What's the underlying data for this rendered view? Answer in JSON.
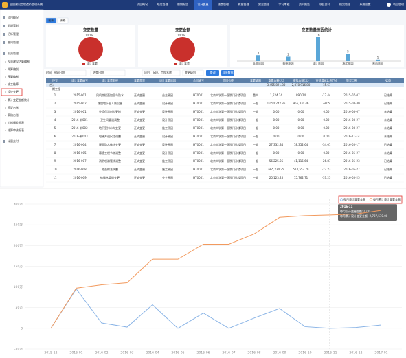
{
  "header": {
    "title": "全国建设工程造价管理系统",
    "nav": [
      "项目概况",
      "规范管理",
      "前期报告",
      "设计变更",
      "进度管理",
      "质量管理",
      "安全管理",
      "学习考核",
      "资料报告",
      "项目资料",
      "档案管理",
      "系统设置"
    ],
    "user": "项目管理"
  },
  "sidebar": [
    "项目概况",
    "前期策划",
    "招标管理",
    "合同管理",
    "投资管理",
    "投资建设估算编制",
    "概算编制",
    "预算编制",
    "竣工结算",
    "设计变更",
    "累计变更金额统计",
    "签证台账",
    "索赔台账",
    "价格调差报表",
    "结算审核报表",
    "计量支付"
  ],
  "tabs": [
    "图表",
    "表格"
  ],
  "filters": {
    "label": "时间:",
    "start": "开始日期",
    "end": "结束日期",
    "keyword": "项目、标段、工程名称",
    "level": "变更级别",
    "search": "查询",
    "export": "导出数据"
  },
  "table": {
    "columns": [
      "序号",
      "设计变更编号",
      "设计变更名称",
      "变更类型",
      "设计变更原因",
      "合同编号",
      "合同名称",
      "变更级别",
      "变更金额(元)",
      "审批金额(元)",
      "审核增减比例(%)",
      "签订日期",
      "状态"
    ],
    "total": {
      "label": "合计",
      "amount": "3,455,821.80",
      "approved": "2,878,916.80",
      "ratio": "-15.67"
    },
    "group": "一期工程",
    "rows": [
      [
        "1",
        "2015-001",
        "风机房楼面加固与防水",
        "正式变更",
        "业主原因",
        "HT0001",
        "北京大学第一医院门诊楼项目",
        "重大",
        "1,524.24",
        "890.24",
        "-13.44",
        "2015-07-07",
        "已结算"
      ],
      [
        "2",
        "2015-002",
        "增加地下室人防设备",
        "正式变更",
        "设计原因",
        "HT0001",
        "北京大学第一医院门诊楼项目",
        "一般",
        "1,050,242.35",
        "955,330.46",
        "-9.05",
        "2015-08-30",
        "已结算"
      ],
      [
        "3",
        "2016-001",
        "外墙保温材料更换",
        "正式变更",
        "设计原因",
        "HT0001",
        "北京大学第一医院门诊楼项目",
        "一般",
        "0.00",
        "0.00",
        "0.00",
        "2016-08-07",
        "未结算"
      ],
      [
        "4",
        "2016-新001",
        "卫生间管道调整",
        "正式变更",
        "设计原因",
        "HT0001",
        "北京大学第一医院门诊楼项目",
        "一般",
        "0.00",
        "0.00",
        "0.00",
        "2016-08-27",
        "未结算"
      ],
      [
        "5",
        "2016-新002",
        "地下室排水沟变更",
        "正式变更",
        "施工原因",
        "HT0001",
        "北京大学第一医院门诊楼项目",
        "一般",
        "0.00",
        "0.00",
        "0.00",
        "2016-08-27",
        "未结算"
      ],
      [
        "6",
        "2016-新003",
        "电梯井道尺寸调整",
        "正式变更",
        "设计原因",
        "HT0001",
        "北京大学第一医院门诊楼项目",
        "一般",
        "0.00",
        "0.00",
        "0.00",
        "2016-11-14",
        "未结算"
      ],
      [
        "7",
        "2016-004",
        "屋面防水做法变更",
        "正式变更",
        "设计原因",
        "HT0001",
        "北京大学第一医院门诊楼项目",
        "一般",
        "27,332.34",
        "18,352.64",
        "-34.01",
        "2016-05-17",
        "已结算"
      ],
      [
        "8",
        "2016-005",
        "幕墙工程节点调整",
        "正式变更",
        "设计原因",
        "HT0001",
        "北京大学第一医院门诊楼项目",
        "一般",
        "0.00",
        "0.00",
        "0.00",
        "2016-05-27",
        "未结算"
      ],
      [
        "9",
        "2016-007",
        "消防喷淋管线调整",
        "正式变更",
        "施工原因",
        "HT0001",
        "北京大学第一医院门诊楼项目",
        "一般",
        "56,225.25",
        "41,115.64",
        "-26.87",
        "2016-05-23",
        "已结算"
      ],
      [
        "10",
        "2016-008",
        "地面做法调整",
        "正式变更",
        "施工原因",
        "HT0001",
        "北京大学第一医院门诊楼项目",
        "一般",
        "665,234.25",
        "514,557.79",
        "-22.23",
        "2016-05-27",
        "已结算"
      ],
      [
        "11",
        "2016-009",
        "给排水管道变更",
        "正式变更",
        "业主原因",
        "HT0001",
        "北京大学第一医院门诊楼项目",
        "一般",
        "25,123.25",
        "15,762.71",
        "-37.25",
        "2016-05-25",
        "已结算"
      ]
    ]
  },
  "chart_data": [
    {
      "type": "pie",
      "title": "变更数量",
      "categories": [
        "设计变更"
      ],
      "values": [
        100
      ],
      "value_labels": [
        "100%"
      ],
      "colors": [
        "#c9302c"
      ]
    },
    {
      "type": "pie",
      "title": "变更金额",
      "categories": [
        "设计变更"
      ],
      "values": [
        100
      ],
      "value_labels": [
        "100%"
      ],
      "colors": [
        "#c9302c"
      ]
    },
    {
      "type": "bar",
      "title": "变更数量原因统计",
      "categories": [
        "业主原因",
        "勘察原因",
        "设计原因",
        "施工原因",
        "其他原因"
      ],
      "values": [
        4,
        3,
        16,
        5,
        1
      ],
      "color": "#5aa7d8"
    },
    {
      "type": "line",
      "categories": [
        "2015-12",
        "2016-01",
        "2016-02",
        "2016-03",
        "2016-04",
        "2016-05",
        "2016-06",
        "2016-07",
        "2016-08",
        "2016-09",
        "2016-10",
        "2016-11",
        "2016-12",
        "2017-01"
      ],
      "series": [
        {
          "name": "每月设计变更金额",
          "color": "#8ab4e6",
          "values": [
            0,
            95,
            13,
            3,
            57,
            0,
            37,
            0,
            25,
            48,
            4,
            0,
            2,
            8
          ]
        },
        {
          "name": "每月累计设计变更金额",
          "color": "#f29a5e",
          "values": [
            0,
            97,
            105,
            110,
            167,
            167,
            203,
            203,
            228,
            268,
            272,
            273.757,
            276,
            285
          ]
        }
      ],
      "ylim": [
        -50,
        300
      ],
      "yticks": [
        {
          "value": -50,
          "label": "-50万"
        },
        0,
        {
          "value": 50,
          "label": "50万"
        },
        {
          "value": 100,
          "label": "100万"
        },
        {
          "value": 150,
          "label": "150万"
        },
        {
          "value": 200,
          "label": "200万"
        },
        {
          "value": 250,
          "label": "250万"
        },
        {
          "value": 300,
          "label": "300万"
        }
      ],
      "grid": true,
      "legend": "top-right",
      "tooltip": [
        "2016-11",
        "每月设计变更金额: 0.00",
        "每月累计设计变更金额: 2,737,570.00"
      ]
    }
  ]
}
